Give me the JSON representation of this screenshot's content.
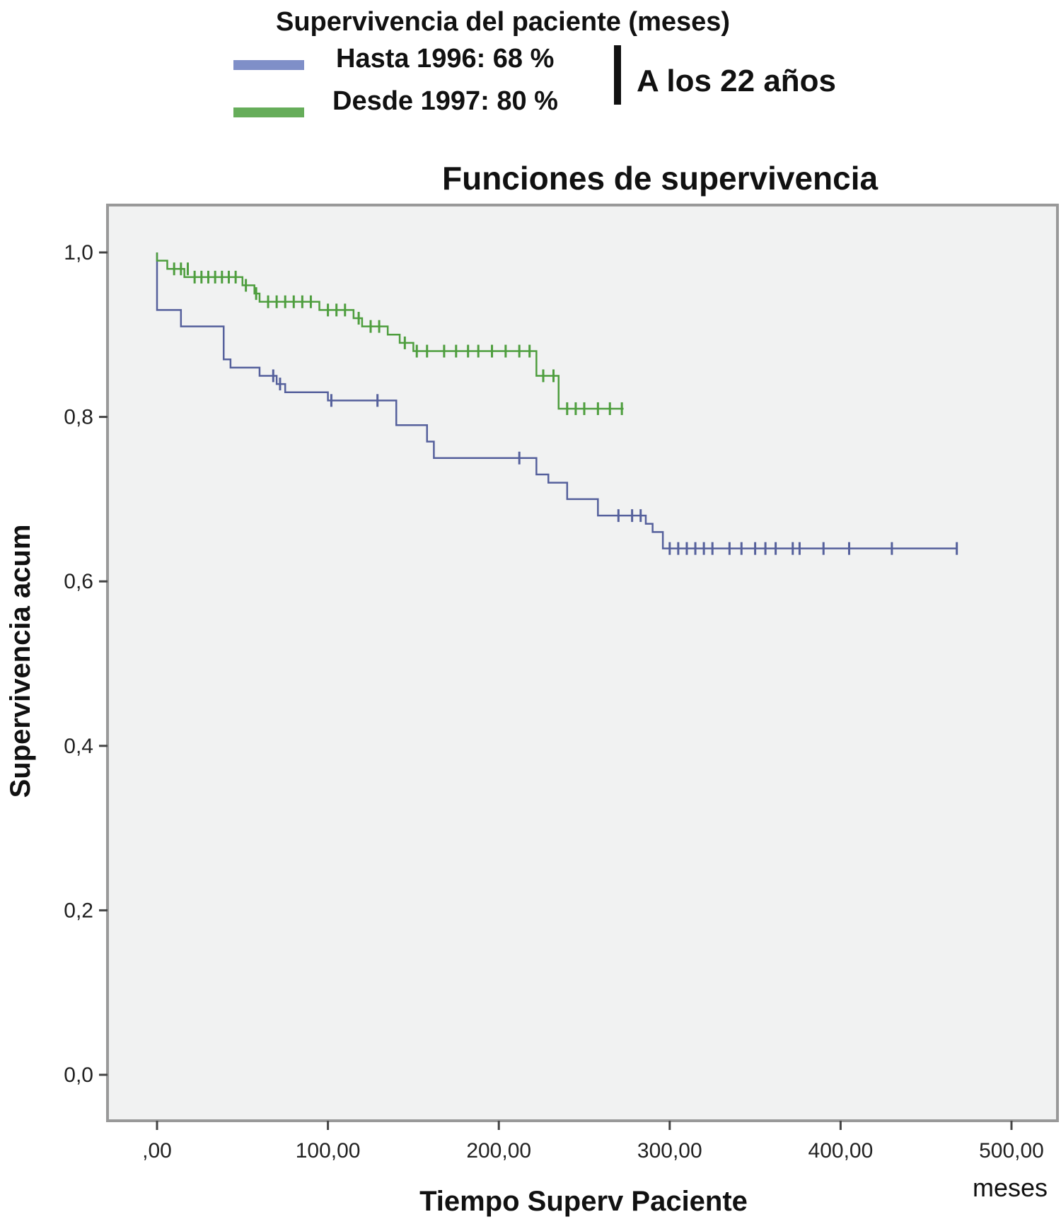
{
  "legend": {
    "header": "Supervivencia del paciente (meses)",
    "items": [
      {
        "label": "Hasta 1996: 68 %",
        "color": "#7f8fc8"
      },
      {
        "label": "Desde 1997: 80 %",
        "color": "#66ad5a"
      }
    ],
    "note": "A los 22 años"
  },
  "chart_data": {
    "type": "line",
    "title": "Funciones de supervivencia",
    "xlabel": "Tiempo Superv Paciente",
    "ylabel": "Supervivencia acum",
    "x_unit_label": "meses",
    "xlim": [
      0,
      500
    ],
    "ylim": [
      0,
      1
    ],
    "xticks": [
      ",00",
      "100,00",
      "200,00",
      "300,00",
      "400,00",
      "500,00"
    ],
    "yticks": [
      "0,0",
      "0,2",
      "0,4",
      "0,6",
      "0,8",
      "1,0"
    ],
    "background": "#f1f2f2",
    "series": [
      {
        "name": "Hasta 1996",
        "color": "#55609c",
        "steps": [
          [
            0,
            1.0
          ],
          [
            0,
            0.93
          ],
          [
            14,
            0.91
          ],
          [
            39,
            0.87
          ],
          [
            43,
            0.86
          ],
          [
            60,
            0.85
          ],
          [
            70,
            0.84
          ],
          [
            75,
            0.83
          ],
          [
            100,
            0.82
          ],
          [
            140,
            0.79
          ],
          [
            158,
            0.77
          ],
          [
            162,
            0.75
          ],
          [
            222,
            0.73
          ],
          [
            229,
            0.72
          ],
          [
            240,
            0.7
          ],
          [
            258,
            0.68
          ],
          [
            286,
            0.67
          ],
          [
            290,
            0.66
          ],
          [
            296,
            0.64
          ],
          [
            468,
            0.64
          ]
        ],
        "censored": [
          [
            68,
            0.85
          ],
          [
            72,
            0.84
          ],
          [
            102,
            0.82
          ],
          [
            129,
            0.82
          ],
          [
            212,
            0.75
          ],
          [
            270,
            0.68
          ],
          [
            278,
            0.68
          ],
          [
            283,
            0.68
          ],
          [
            300,
            0.64
          ],
          [
            305,
            0.64
          ],
          [
            310,
            0.64
          ],
          [
            315,
            0.64
          ],
          [
            320,
            0.64
          ],
          [
            325,
            0.64
          ],
          [
            335,
            0.64
          ],
          [
            342,
            0.64
          ],
          [
            350,
            0.64
          ],
          [
            356,
            0.64
          ],
          [
            362,
            0.64
          ],
          [
            372,
            0.64
          ],
          [
            376,
            0.64
          ],
          [
            390,
            0.64
          ],
          [
            405,
            0.64
          ],
          [
            430,
            0.64
          ],
          [
            468,
            0.64
          ]
        ]
      },
      {
        "name": "Desde 1997",
        "color": "#4e9e3e",
        "steps": [
          [
            0,
            1.0
          ],
          [
            0,
            0.99
          ],
          [
            6,
            0.98
          ],
          [
            16,
            0.97
          ],
          [
            50,
            0.96
          ],
          [
            57,
            0.95
          ],
          [
            60,
            0.94
          ],
          [
            95,
            0.93
          ],
          [
            115,
            0.92
          ],
          [
            120,
            0.91
          ],
          [
            135,
            0.9
          ],
          [
            142,
            0.89
          ],
          [
            150,
            0.88
          ],
          [
            222,
            0.85
          ],
          [
            230,
            0.85
          ],
          [
            235,
            0.81
          ],
          [
            273,
            0.81
          ]
        ],
        "censored": [
          [
            10,
            0.98
          ],
          [
            14,
            0.98
          ],
          [
            18,
            0.98
          ],
          [
            22,
            0.97
          ],
          [
            26,
            0.97
          ],
          [
            30,
            0.97
          ],
          [
            34,
            0.97
          ],
          [
            38,
            0.97
          ],
          [
            42,
            0.97
          ],
          [
            46,
            0.97
          ],
          [
            52,
            0.96
          ],
          [
            58,
            0.95
          ],
          [
            65,
            0.94
          ],
          [
            70,
            0.94
          ],
          [
            75,
            0.94
          ],
          [
            80,
            0.94
          ],
          [
            85,
            0.94
          ],
          [
            90,
            0.94
          ],
          [
            100,
            0.93
          ],
          [
            105,
            0.93
          ],
          [
            110,
            0.93
          ],
          [
            118,
            0.92
          ],
          [
            125,
            0.91
          ],
          [
            130,
            0.91
          ],
          [
            145,
            0.89
          ],
          [
            152,
            0.88
          ],
          [
            158,
            0.88
          ],
          [
            168,
            0.88
          ],
          [
            175,
            0.88
          ],
          [
            182,
            0.88
          ],
          [
            188,
            0.88
          ],
          [
            196,
            0.88
          ],
          [
            204,
            0.88
          ],
          [
            212,
            0.88
          ],
          [
            218,
            0.88
          ],
          [
            226,
            0.85
          ],
          [
            232,
            0.85
          ],
          [
            240,
            0.81
          ],
          [
            245,
            0.81
          ],
          [
            250,
            0.81
          ],
          [
            258,
            0.81
          ],
          [
            265,
            0.81
          ],
          [
            272,
            0.81
          ]
        ]
      }
    ]
  }
}
